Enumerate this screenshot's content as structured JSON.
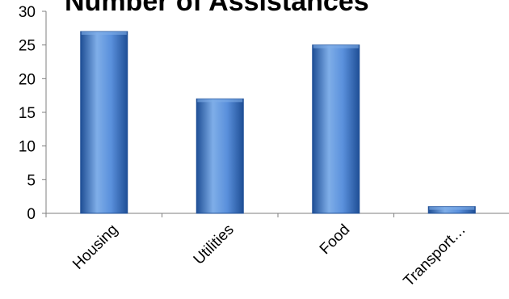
{
  "chart_data": {
    "type": "bar",
    "title": "Number of Assistances",
    "categories": [
      "Housing",
      "Utilities",
      "Food",
      "Transport…"
    ],
    "values": [
      27,
      17,
      25,
      1
    ],
    "ylim": [
      0,
      30
    ],
    "yticks": [
      "0",
      "5",
      "10",
      "15",
      "20",
      "25",
      "30"
    ],
    "xlabel": "",
    "ylabel": "",
    "grid": false,
    "legend": "none",
    "colors": {
      "bar_light": "#7faee8",
      "bar_mid": "#3b76c9",
      "bar_dark": "#1f4f96",
      "axis": "#7f7f7f"
    }
  }
}
